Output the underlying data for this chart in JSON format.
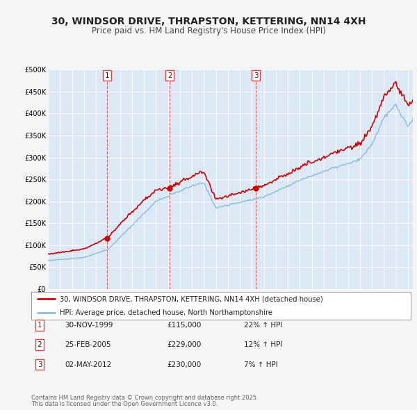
{
  "title": "30, WINDSOR DRIVE, THRAPSTON, KETTERING, NN14 4XH",
  "subtitle": "Price paid vs. HM Land Registry's House Price Index (HPI)",
  "title_fontsize": 10,
  "subtitle_fontsize": 8.5,
  "background_color": "#f5f5f5",
  "plot_bg_color": "#dce8f5",
  "ylim": [
    0,
    500000
  ],
  "yticks": [
    0,
    50000,
    100000,
    150000,
    200000,
    250000,
    300000,
    350000,
    400000,
    450000,
    500000
  ],
  "ytick_labels": [
    "£0",
    "£50K",
    "£100K",
    "£150K",
    "£200K",
    "£250K",
    "£300K",
    "£350K",
    "£400K",
    "£450K",
    "£500K"
  ],
  "sale_date_objs": [
    "1999-11-30",
    "2005-02-25",
    "2012-05-02"
  ],
  "sale_prices": [
    115000,
    229000,
    230000
  ],
  "sale_labels": [
    "1",
    "2",
    "3"
  ],
  "sale_annotations": [
    {
      "label": "1",
      "date": "30-NOV-1999",
      "price": "£115,000",
      "hpi": "22% ↑ HPI"
    },
    {
      "label": "2",
      "date": "25-FEB-2005",
      "price": "£229,000",
      "hpi": "12% ↑ HPI"
    },
    {
      "label": "3",
      "date": "02-MAY-2012",
      "price": "£230,000",
      "hpi": "7% ↑ HPI"
    }
  ],
  "legend_line1": "30, WINDSOR DRIVE, THRAPSTON, KETTERING, NN14 4XH (detached house)",
  "legend_line2": "HPI: Average price, detached house, North Northamptonshire",
  "footer_line1": "Contains HM Land Registry data © Crown copyright and database right 2025.",
  "footer_line2": "This data is licensed under the Open Government Licence v3.0.",
  "line_color_red": "#cc0000",
  "line_color_blue": "#88bbdd",
  "vline_color": "#dd4444",
  "dot_color_red": "#cc0000",
  "x_start_year": 1995,
  "x_end_year": 2025
}
